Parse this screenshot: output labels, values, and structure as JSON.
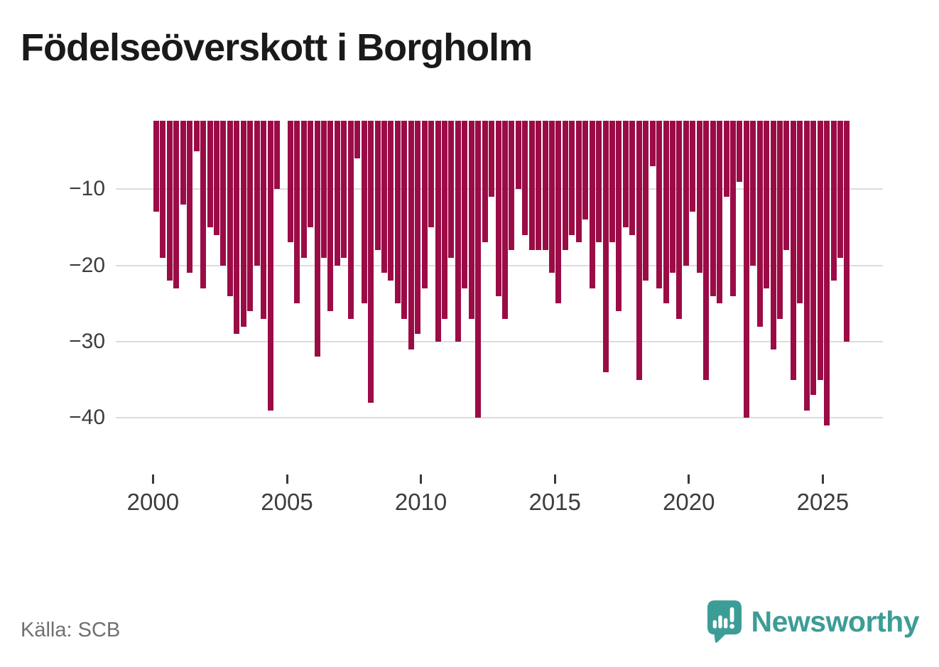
{
  "page": {
    "title": "Födelseöverskott i Borgholm"
  },
  "footer": {
    "source": "Källa: SCB",
    "brand": "Newsworthy"
  },
  "colors": {
    "bar": "#9B0C46",
    "brand_teal": "#3C9D96",
    "grid": "#DCDCDC",
    "axis_text": "#3D3D3D",
    "title_text": "#1A1A1A",
    "source_text": "#707070"
  },
  "chart_data": {
    "type": "bar",
    "title": "Födelseöverskott i Borgholm",
    "x_unit": "quarter",
    "quarters": [
      "2000Q1",
      "2000Q2",
      "2000Q3",
      "2000Q4",
      "2001Q1",
      "2001Q2",
      "2001Q3",
      "2001Q4",
      "2002Q1",
      "2002Q2",
      "2002Q3",
      "2002Q4",
      "2003Q1",
      "2003Q2",
      "2003Q3",
      "2003Q4",
      "2004Q1",
      "2004Q2",
      "2004Q3",
      "2004Q4",
      "2005Q1",
      "2005Q2",
      "2005Q3",
      "2005Q4",
      "2006Q1",
      "2006Q2",
      "2006Q3",
      "2006Q4",
      "2007Q1",
      "2007Q2",
      "2007Q3",
      "2007Q4",
      "2008Q1",
      "2008Q2",
      "2008Q3",
      "2008Q4",
      "2009Q1",
      "2009Q2",
      "2009Q3",
      "2009Q4",
      "2010Q1",
      "2010Q2",
      "2010Q3",
      "2010Q4",
      "2011Q1",
      "2011Q2",
      "2011Q3",
      "2011Q4",
      "2012Q1",
      "2012Q2",
      "2012Q3",
      "2012Q4",
      "2013Q1",
      "2013Q2",
      "2013Q3",
      "2013Q4",
      "2014Q1",
      "2014Q2",
      "2014Q3",
      "2014Q4",
      "2015Q1",
      "2015Q2",
      "2015Q3",
      "2015Q4",
      "2016Q1",
      "2016Q2",
      "2016Q3",
      "2016Q4",
      "2017Q1",
      "2017Q2",
      "2017Q3",
      "2017Q4",
      "2018Q1",
      "2018Q2",
      "2018Q3",
      "2018Q4",
      "2019Q1",
      "2019Q2",
      "2019Q3",
      "2019Q4",
      "2020Q1",
      "2020Q2",
      "2020Q3",
      "2020Q4",
      "2021Q1",
      "2021Q2",
      "2021Q3",
      "2021Q4",
      "2022Q1",
      "2022Q2",
      "2022Q3",
      "2022Q4",
      "2023Q1",
      "2023Q2",
      "2023Q3",
      "2023Q4",
      "2024Q1",
      "2024Q2",
      "2024Q3",
      "2024Q4",
      "2025Q1",
      "2025Q2",
      "2025Q3",
      "2025Q4"
    ],
    "values": [
      -13,
      -19,
      -22,
      -23,
      -12,
      -21,
      -5,
      -23,
      -15,
      -16,
      -20,
      -24,
      -29,
      -28,
      -26,
      -20,
      -27,
      -39,
      -10,
      0,
      -17,
      -25,
      -19,
      -15,
      -32,
      -19,
      -26,
      -20,
      -19,
      -27,
      -6,
      -25,
      -38,
      -18,
      -21,
      -22,
      -25,
      -27,
      -31,
      -29,
      -23,
      -15,
      -30,
      -27,
      -19,
      -30,
      -23,
      -27,
      -40,
      -17,
      -11,
      -24,
      -27,
      -18,
      -10,
      -16,
      -18,
      -18,
      -18,
      -21,
      -25,
      -18,
      -16,
      -17,
      -14,
      -23,
      -17,
      -34,
      -17,
      -26,
      -15,
      -16,
      -35,
      -22,
      -7,
      -23,
      -25,
      -21,
      -27,
      -20,
      -13,
      -21,
      -35,
      -24,
      -25,
      -11,
      -24,
      -9,
      -40,
      -20,
      -28,
      -23,
      -31,
      -27,
      -18,
      -35,
      -25,
      -39,
      -37,
      -35,
      -41,
      -22,
      -19,
      -30
    ],
    "missing_quarters": [
      "2004Q4"
    ],
    "y_ticks": [
      -10,
      -20,
      -30,
      -40
    ],
    "y_tick_labels": [
      "−10",
      "−20",
      "−30",
      "−40"
    ],
    "x_ticks": [
      2000,
      2005,
      2010,
      2015,
      2020,
      2025
    ],
    "x_tick_labels": [
      "2000",
      "2005",
      "2010",
      "2015",
      "2020",
      "2025"
    ],
    "ylim": [
      -42,
      0
    ],
    "xlabel": "",
    "ylabel": "",
    "grid": "horizontal",
    "legend": "none",
    "bar_color": "#9B0C46"
  }
}
